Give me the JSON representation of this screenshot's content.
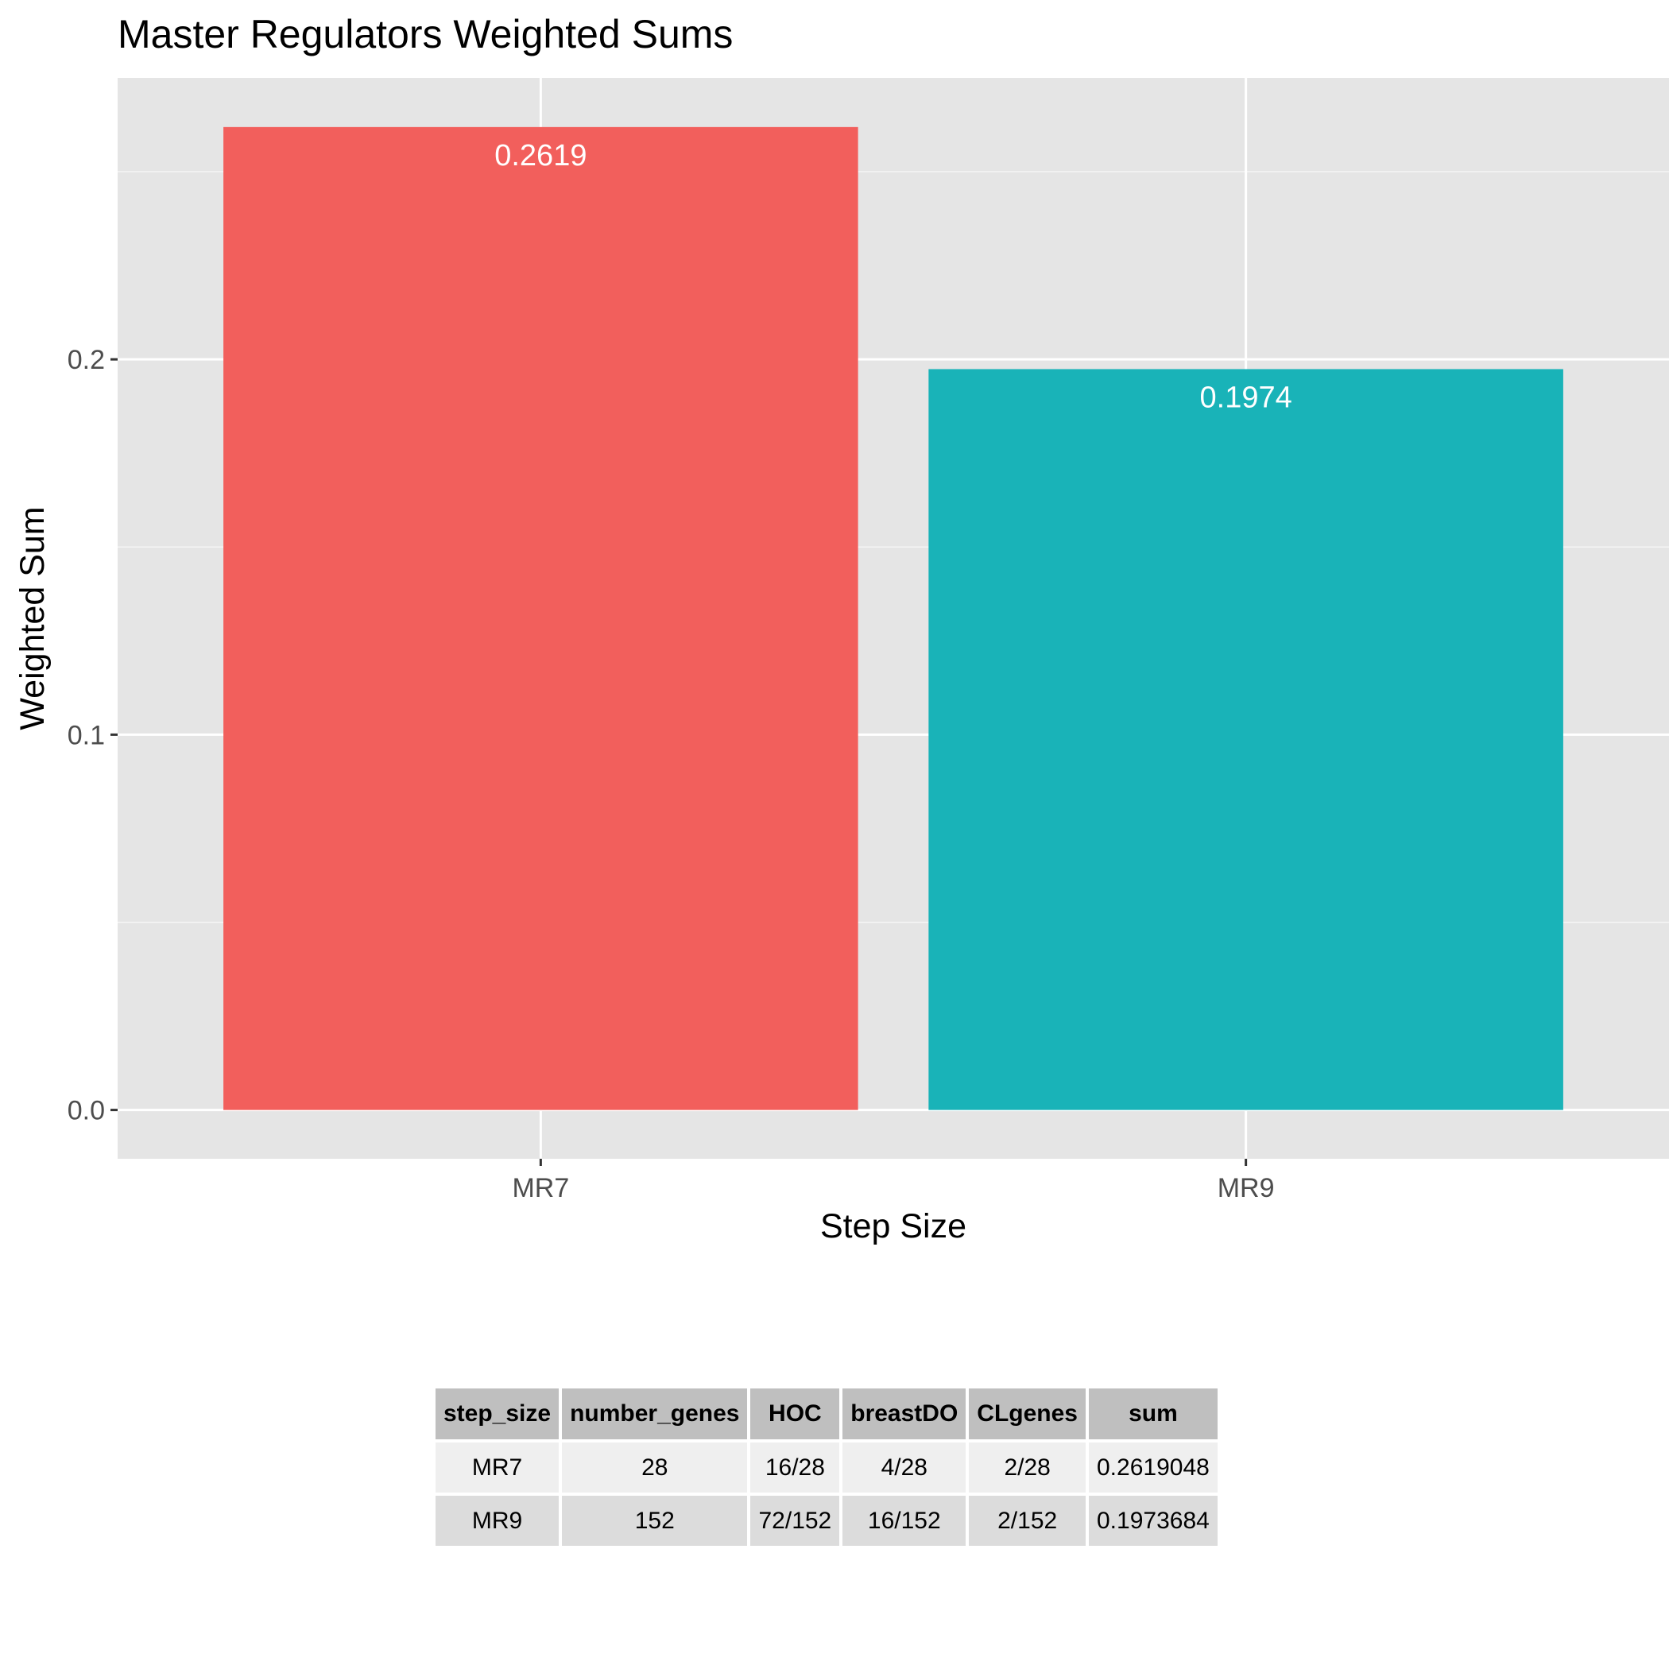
{
  "chart_data": {
    "type": "bar",
    "title": "Master Regulators Weighted Sums",
    "xlabel": "Step Size",
    "ylabel": "Weighted Sum",
    "categories": [
      "MR7",
      "MR9"
    ],
    "values": [
      0.2619,
      0.1974
    ],
    "data_labels": [
      "0.2619",
      "0.1974"
    ],
    "colors": [
      "#F25F5C",
      "#19B3B8"
    ],
    "ylim": [
      -0.013,
      0.275
    ],
    "yticks": [
      0.0,
      0.1,
      0.2
    ],
    "ytick_labels": [
      "0.0",
      "0.1",
      "0.2"
    ],
    "grid": true,
    "legend": "none"
  },
  "table": {
    "headers": [
      "step_size",
      "number_genes",
      "HOC",
      "breastDO",
      "CLgenes",
      "sum"
    ],
    "rows": [
      [
        "MR7",
        "28",
        "16/28",
        "4/28",
        "2/28",
        "0.2619048"
      ],
      [
        "MR9",
        "152",
        "72/152",
        "16/152",
        "2/152",
        "0.1973684"
      ]
    ]
  }
}
